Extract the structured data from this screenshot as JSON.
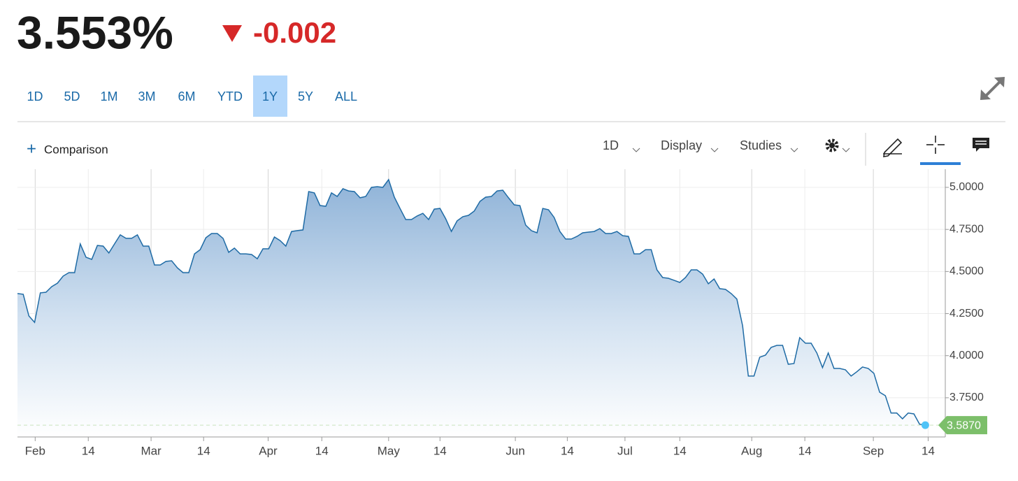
{
  "header": {
    "price": "3.553%",
    "change": "-0.002"
  },
  "tabs": {
    "items": [
      "1D",
      "5D",
      "1M",
      "3M",
      "6M",
      "YTD",
      "1Y",
      "5Y",
      "ALL"
    ],
    "active": 6
  },
  "toolbar": {
    "comparison": "Comparison",
    "interval": "1D",
    "display": "Display",
    "studies": "Studies"
  },
  "chart_data": {
    "type": "area",
    "color": "#1f6ba5",
    "grid": true,
    "values": [
      4.369,
      4.365,
      4.236,
      4.198,
      4.373,
      4.377,
      4.41,
      4.431,
      4.473,
      4.493,
      4.493,
      4.664,
      4.585,
      4.572,
      4.655,
      4.651,
      4.61,
      4.664,
      4.718,
      4.697,
      4.697,
      4.718,
      4.651,
      4.651,
      4.539,
      4.539,
      4.56,
      4.564,
      4.522,
      4.493,
      4.493,
      4.605,
      4.63,
      4.701,
      4.726,
      4.726,
      4.697,
      4.614,
      4.639,
      4.605,
      4.605,
      4.601,
      4.576,
      4.635,
      4.635,
      4.705,
      4.684,
      4.651,
      4.738,
      4.743,
      4.747,
      4.975,
      4.967,
      4.892,
      4.888,
      4.967,
      4.946,
      4.992,
      4.979,
      4.975,
      4.938,
      4.946,
      5.0,
      5.004,
      5.0,
      5.046,
      4.942,
      4.875,
      4.809,
      4.809,
      4.83,
      4.846,
      4.809,
      4.871,
      4.875,
      4.813,
      4.738,
      4.801,
      4.826,
      4.834,
      4.859,
      4.917,
      4.942,
      4.946,
      4.979,
      4.983,
      4.938,
      4.896,
      4.892,
      4.776,
      4.743,
      4.73,
      4.875,
      4.867,
      4.821,
      4.738,
      4.693,
      4.693,
      4.709,
      4.73,
      4.734,
      4.738,
      4.755,
      4.726,
      4.726,
      4.738,
      4.713,
      4.709,
      4.605,
      4.605,
      4.63,
      4.63,
      4.51,
      4.464,
      4.46,
      4.448,
      4.435,
      4.464,
      4.51,
      4.51,
      4.485,
      4.427,
      4.456,
      4.398,
      4.394,
      4.369,
      4.336,
      4.178,
      3.879,
      3.879,
      3.991,
      4.003,
      4.049,
      4.061,
      4.061,
      3.949,
      3.953,
      4.107,
      4.074,
      4.074,
      4.016,
      3.929,
      4.016,
      3.924,
      3.924,
      3.916,
      3.879,
      3.904,
      3.933,
      3.924,
      3.895,
      3.783,
      3.762,
      3.659,
      3.659,
      3.625,
      3.659,
      3.654,
      3.592,
      3.587
    ],
    "last_value_label": "3.5870",
    "xlim": [
      0,
      162.5
    ],
    "xticks": [
      {
        "value": 3.1,
        "label": "Feb"
      },
      {
        "value": 12.4,
        "label": "14"
      },
      {
        "value": 23.4,
        "label": "Mar"
      },
      {
        "value": 32.6,
        "label": "14"
      },
      {
        "value": 43.9,
        "label": "Apr"
      },
      {
        "value": 53.3,
        "label": "14"
      },
      {
        "value": 65.0,
        "label": "May"
      },
      {
        "value": 74.0,
        "label": "14"
      },
      {
        "value": 87.2,
        "label": "Jun"
      },
      {
        "value": 96.3,
        "label": "14"
      },
      {
        "value": 106.4,
        "label": "Jul"
      },
      {
        "value": 116.0,
        "label": "14"
      },
      {
        "value": 128.6,
        "label": "Aug"
      },
      {
        "value": 137.9,
        "label": "14"
      },
      {
        "value": 149.9,
        "label": "Sep"
      },
      {
        "value": 159.5,
        "label": "14"
      }
    ],
    "ylim": [
      3.517,
      5.108
    ],
    "yticks": [
      {
        "value": 3.75,
        "label": "3.7500"
      },
      {
        "value": 4.0,
        "label": "4.0000"
      },
      {
        "value": 4.25,
        "label": "4.2500"
      },
      {
        "value": 4.5,
        "label": "4.5000"
      },
      {
        "value": 4.75,
        "label": "4.7500"
      },
      {
        "value": 5.0,
        "label": "5.0000"
      }
    ]
  }
}
